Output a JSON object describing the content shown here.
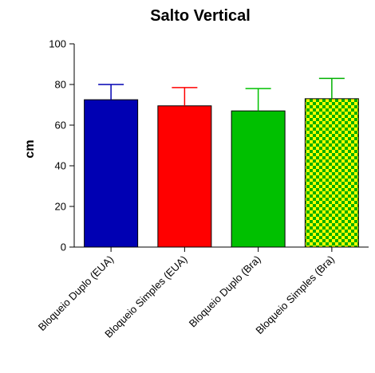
{
  "chart_data": {
    "type": "bar",
    "title": "Salto Vertical",
    "xlabel": "",
    "ylabel": "cm",
    "ylim": [
      0,
      100
    ],
    "yticks": [
      0,
      20,
      40,
      60,
      80,
      100
    ],
    "grid": false,
    "categories": [
      "Bloqueio Duplo (EUA)",
      "Bloqueio Simples (EUA)",
      "Bloqueio Duplo (Bra)",
      "Bloqueio Simples (Bra)"
    ],
    "values": [
      72.5,
      69.5,
      67,
      73
    ],
    "error_upper": [
      7.5,
      9,
      11,
      10
    ],
    "colors": [
      "#0000b3",
      "#ff0000",
      "#00c000",
      "#00b000"
    ],
    "patterns": [
      "solid",
      "solid",
      "solid",
      "checker-green-yellow"
    ],
    "pattern_colors": {
      "a": "#00b000",
      "b": "#ffff00"
    },
    "error_bar_color_default": "#000000",
    "error_bar_colors": [
      "#0000b3",
      "#ff0000",
      "#00c000",
      "#00b000"
    ]
  }
}
